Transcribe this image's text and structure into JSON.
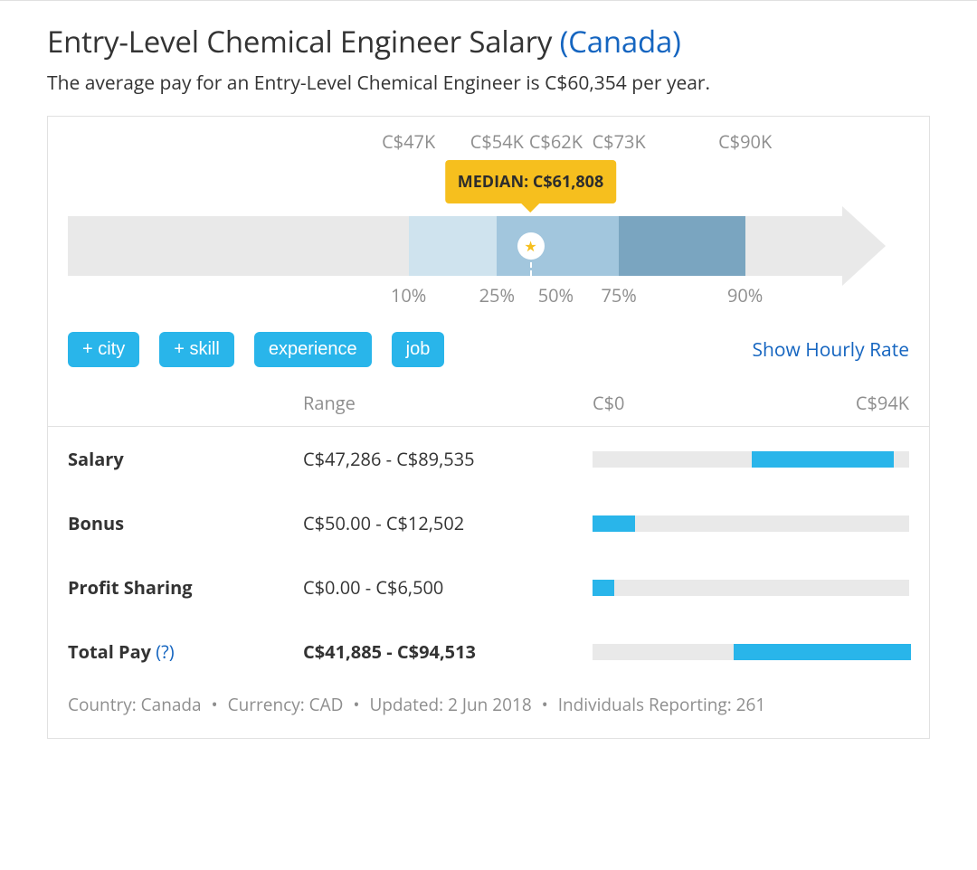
{
  "header": {
    "title_main": "Entry-Level Chemical Engineer Salary ",
    "title_region": "(Canada)",
    "subtitle": "The average pay for an Entry-Level Chemical Engineer is C$60,354 per year."
  },
  "salary_chart": {
    "arrow_body_pct": 92,
    "arrow_color": "#e9e9e9",
    "percentile_points": [
      {
        "pct_label": "10%",
        "salary_label": "C$47K",
        "pos_pct": 40.5
      },
      {
        "pct_label": "25%",
        "salary_label": "C$54K",
        "pos_pct": 51.0
      },
      {
        "pct_label": "50%",
        "salary_label": "C$62K",
        "pos_pct": 58.0
      },
      {
        "pct_label": "75%",
        "salary_label": "C$73K",
        "pos_pct": 65.5
      },
      {
        "pct_label": "90%",
        "salary_label": "C$90K",
        "pos_pct": 80.5
      }
    ],
    "bands": [
      {
        "from_pct": 40.5,
        "to_pct": 51.0,
        "color": "#cfe3ee"
      },
      {
        "from_pct": 51.0,
        "to_pct": 65.5,
        "color": "#a2c6dd"
      },
      {
        "from_pct": 65.5,
        "to_pct": 80.5,
        "color": "#7aa5c0"
      }
    ],
    "median": {
      "pos_pct": 55.0,
      "tooltip": "MEDIAN: C$61,808",
      "tooltip_bg": "#f6bf1e",
      "tooltip_text_color": "#2d2d2d",
      "star_color": "#f6bf1e"
    }
  },
  "filters": {
    "pills": [
      "+ city",
      "+ skill",
      "experience",
      "job"
    ],
    "pill_bg": "#29b5ea",
    "show_hourly_label": "Show Hourly Rate",
    "link_color": "#1565c0"
  },
  "table": {
    "header_range": "Range",
    "header_min": "C$0",
    "header_max": "C$94K",
    "axis_min": 0,
    "axis_max": 94000,
    "bar_track_color": "#e9e9e9",
    "bar_fill_color": "#29b5ea",
    "rows": [
      {
        "label": "Salary",
        "range_text": "C$47,286 - C$89,535",
        "lo": 47286,
        "hi": 89535,
        "bold": false,
        "help": false
      },
      {
        "label": "Bonus",
        "range_text": "C$50.00 - C$12,502",
        "lo": 50,
        "hi": 12502,
        "bold": false,
        "help": false
      },
      {
        "label": "Profit Sharing",
        "range_text": "C$0.00 - C$6,500",
        "lo": 0,
        "hi": 6500,
        "bold": false,
        "help": false
      },
      {
        "label": "Total Pay",
        "range_text": "C$41,885 - C$94,513",
        "lo": 41885,
        "hi": 94513,
        "bold": true,
        "help": true
      }
    ]
  },
  "meta": {
    "parts": [
      "Country: Canada",
      "Currency: CAD",
      "Updated: 2 Jun 2018",
      "Individuals Reporting: 261"
    ],
    "separator": "•"
  },
  "colors": {
    "text": "#333333",
    "muted": "#8e8e8e",
    "border": "#e1e1e1",
    "link": "#1565c0"
  }
}
